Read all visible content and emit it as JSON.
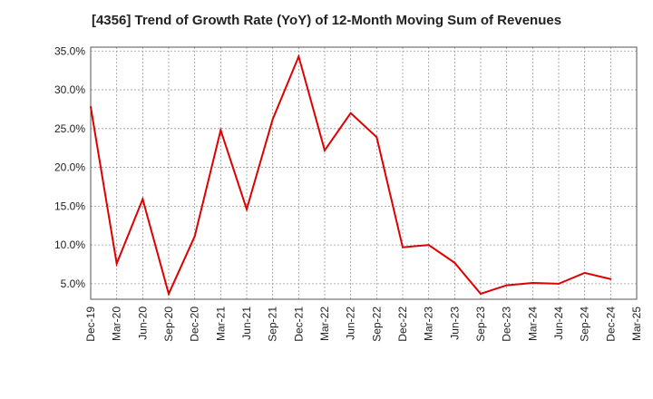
{
  "chart_data": {
    "type": "line",
    "title": "[4356]  Trend of Growth Rate (YoY) of 12-Month Moving Sum of Revenues",
    "xlabel": "",
    "ylabel": "",
    "categories": [
      "Dec-19",
      "Mar-20",
      "Jun-20",
      "Sep-20",
      "Dec-20",
      "Mar-21",
      "Jun-21",
      "Sep-21",
      "Dec-21",
      "Mar-22",
      "Jun-22",
      "Sep-22",
      "Dec-22",
      "Mar-23",
      "Jun-23",
      "Sep-23",
      "Dec-23",
      "Mar-24",
      "Jun-24",
      "Sep-24",
      "Dec-24",
      "Mar-25"
    ],
    "series": [
      {
        "values": [
          27.8,
          7.6,
          15.9,
          3.7,
          11.1,
          24.8,
          14.6,
          26.2,
          34.3,
          22.2,
          27.0,
          23.9,
          9.7,
          10.0,
          7.7,
          3.7,
          4.8,
          5.1,
          5.0,
          6.4,
          5.6,
          null
        ]
      }
    ],
    "y_ticks": [
      "5.0%",
      "10.0%",
      "15.0%",
      "20.0%",
      "25.0%",
      "30.0%",
      "35.0%"
    ],
    "y_tick_values": [
      5,
      10,
      15,
      20,
      25,
      30,
      35
    ],
    "ylim": [
      3,
      35.5
    ],
    "grid": true,
    "line_color": "#dd0000"
  }
}
